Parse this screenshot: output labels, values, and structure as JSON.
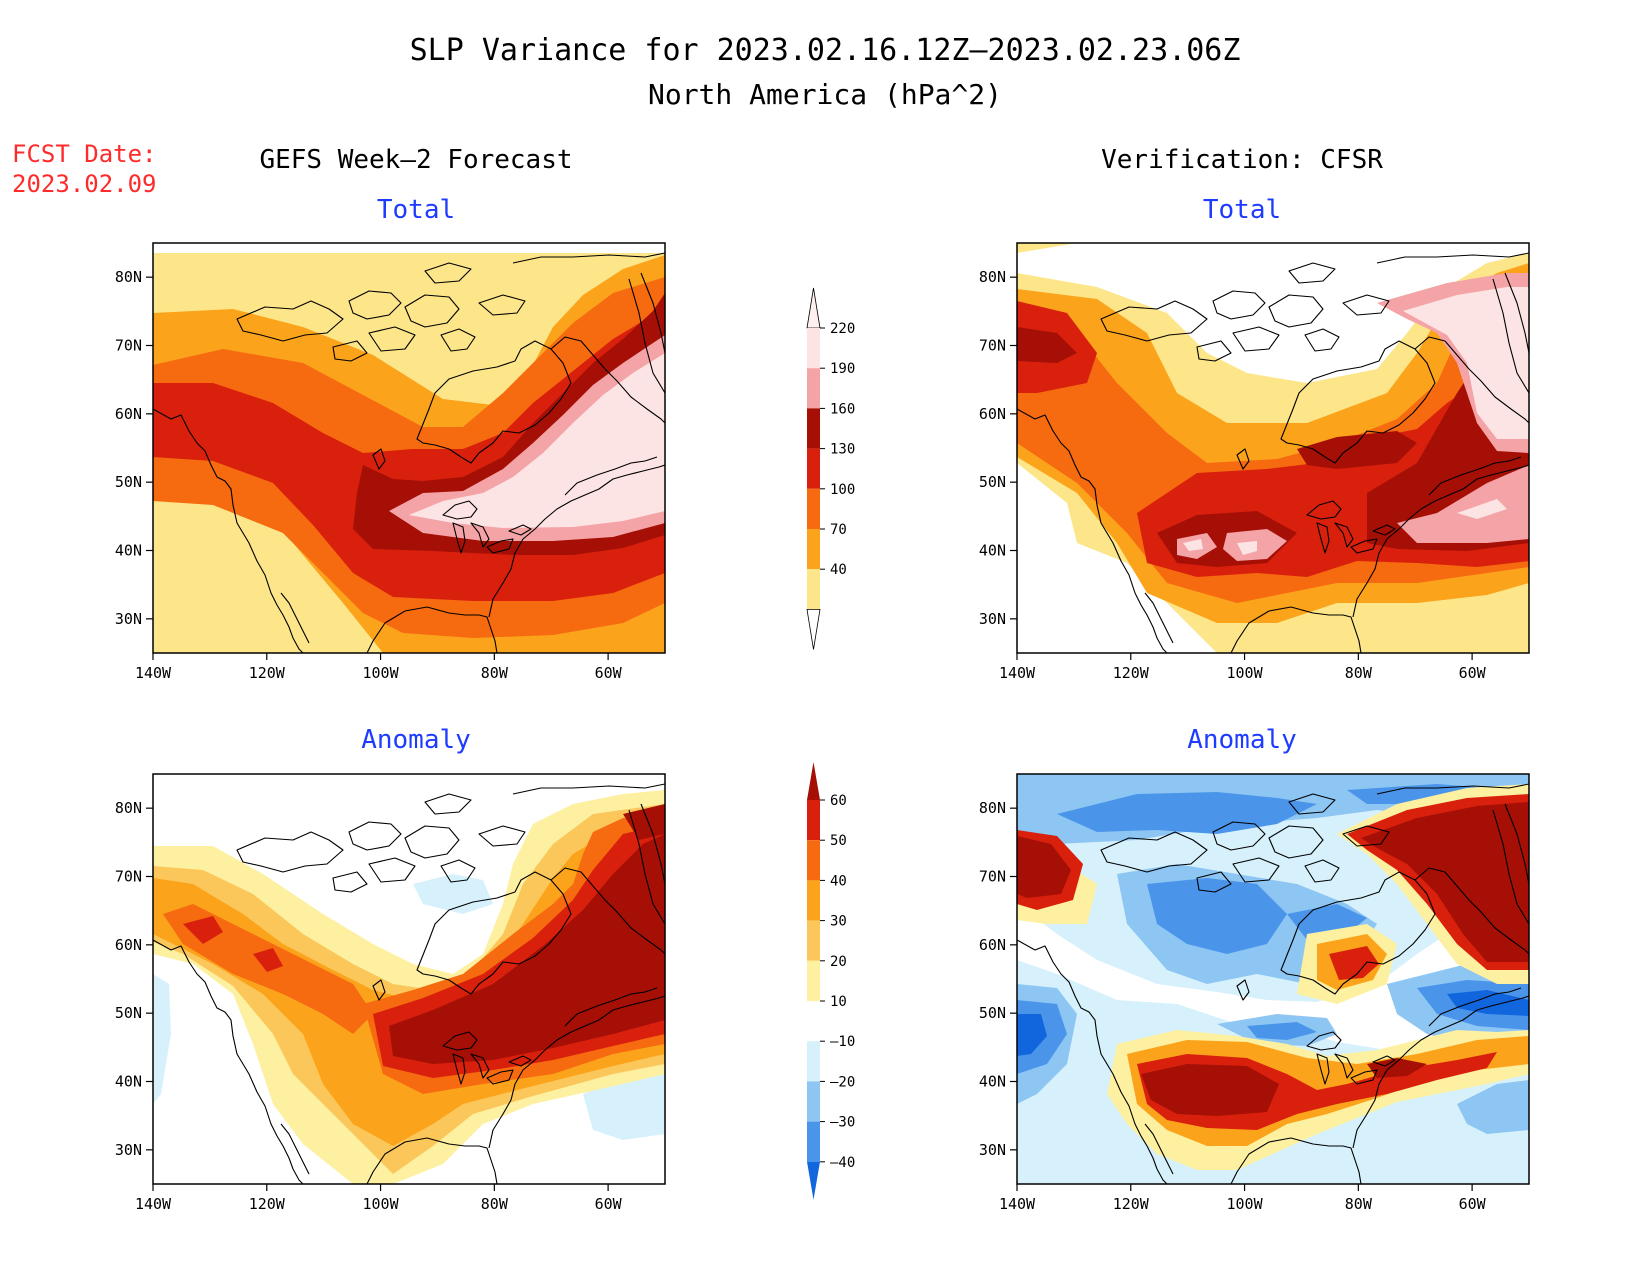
{
  "title": {
    "line1": "SLP Variance for 2023.02.16.12Z–2023.02.23.06Z",
    "line2": "North America (hPa^2)"
  },
  "fcst_date": {
    "label": "FCST Date:",
    "value": "2023.02.09"
  },
  "columns": {
    "left": "GEFS Week–2 Forecast",
    "right": "Verification: CFSR"
  },
  "panel_titles": {
    "total": "Total",
    "anomaly": "Anomaly"
  },
  "colors": {
    "title": "#000000",
    "fcst": "#ff2a2a",
    "panel_title": "#1e3cff"
  },
  "chart_data": [
    {
      "id": "forecast-total",
      "type": "heatmap",
      "title": "Total",
      "map": "North America",
      "x_axis": {
        "range": [
          "140W",
          "50W"
        ],
        "ticks": [
          "140W",
          "120W",
          "100W",
          "80W",
          "60W"
        ]
      },
      "y_axis": {
        "range": [
          "25N",
          "85N"
        ],
        "ticks": [
          "30N",
          "40N",
          "50N",
          "60N",
          "70N",
          "80N"
        ]
      },
      "colorbar": {
        "levels": [
          "40",
          "70",
          "100",
          "130",
          "160",
          "190",
          "220"
        ],
        "colors": [
          "#fde68a",
          "#fca31c",
          "#f66a10",
          "#d9200c",
          "#a50f06",
          "#f4a3a6",
          "#fde4e4"
        ]
      }
    },
    {
      "id": "verification-total",
      "type": "heatmap",
      "title": "Total",
      "map": "North America",
      "x_axis": {
        "range": [
          "140W",
          "50W"
        ],
        "ticks": [
          "140W",
          "120W",
          "100W",
          "80W",
          "60W"
        ]
      },
      "y_axis": {
        "range": [
          "25N",
          "85N"
        ],
        "ticks": [
          "30N",
          "40N",
          "50N",
          "60N",
          "70N",
          "80N"
        ]
      }
    },
    {
      "id": "forecast-anomaly",
      "type": "heatmap",
      "title": "Anomaly",
      "map": "North America",
      "x_axis": {
        "range": [
          "140W",
          "50W"
        ],
        "ticks": [
          "140W",
          "120W",
          "100W",
          "80W",
          "60W"
        ]
      },
      "y_axis": {
        "range": [
          "25N",
          "85N"
        ],
        "ticks": [
          "30N",
          "40N",
          "50N",
          "60N",
          "70N",
          "80N"
        ]
      },
      "colorbar": {
        "levels": [
          "60",
          "50",
          "40",
          "30",
          "20",
          "10",
          "–10",
          "–20",
          "–30",
          "–40"
        ],
        "colors": [
          "#a50f06",
          "#d9200c",
          "#f66a10",
          "#fca31c",
          "#fcc75a",
          "#fdf0a0",
          "#ffffff",
          "#d6f1fb",
          "#8ec6f3",
          "#4a95ea",
          "#1266dd"
        ]
      }
    },
    {
      "id": "verification-anomaly",
      "type": "heatmap",
      "title": "Anomaly",
      "map": "North America",
      "x_axis": {
        "range": [
          "140W",
          "50W"
        ],
        "ticks": [
          "140W",
          "120W",
          "100W",
          "80W",
          "60W"
        ]
      },
      "y_axis": {
        "range": [
          "25N",
          "85N"
        ],
        "ticks": [
          "30N",
          "40N",
          "50N",
          "60N",
          "70N",
          "80N"
        ]
      }
    }
  ]
}
